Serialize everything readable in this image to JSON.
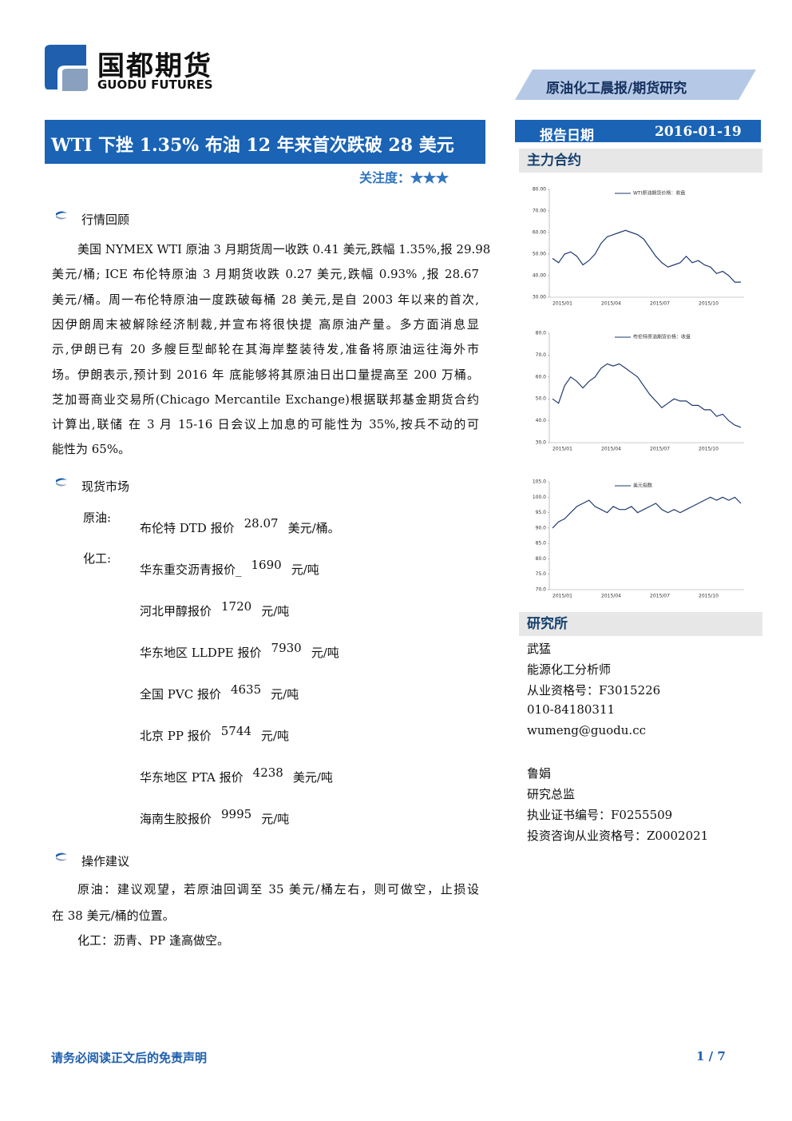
{
  "header": {
    "logo_cn": "国都期货",
    "logo_en": "GUODU FUTURES",
    "banner": "原油化工晨报/期货研究"
  },
  "title": "WTI 下挫 1.35% 布油 12 年来首次跌破 28 美元",
  "attention": {
    "label": "关注度：",
    "stars": "★★★"
  },
  "report_date": {
    "label": "报告日期",
    "value": "2016-01-19"
  },
  "sections": {
    "review": {
      "heading": "行情回顾",
      "lines": [
        "美国 NYMEX WTI 原油 3 月期货周一收跌 0.41 美元,跌幅 1.35%,报 29.98",
        "美元/桶; ICE 布伦特原油 3 月期货收跌 0.27 美元,跌幅 0.93% ,报 28.67",
        "美元/桶。周一布伦特原油一度跌破每桶 28 美元,是自 2003 年以来的首次,",
        "因伊朗周末被解除经济制裁,并宣布将很快提 高原油产量。多方面消息显",
        "示,伊朗已有 20 多艘巨型邮轮在其海岸整装待发,准备将原油运往海外市",
        "场。伊朗表示,预计到 2016 年 底能够将其原油日出口量提高至 200 万桶。",
        "芝加哥商业交易所(Chicago Mercantile Exchange)根据联邦基金期货合约",
        "计算出,联储 在 3 月 15-16 日会议上加息的可能性为 35%,按兵不动的可",
        "能性为 65%。"
      ]
    },
    "spot": {
      "heading": "现货市场",
      "crude": {
        "label": "原油:",
        "items": [
          {
            "name": "布伦特 DTD 报价",
            "price": 28.07,
            "unit": "美元/桶。"
          }
        ]
      },
      "chemical": {
        "label": "化工:",
        "items": [
          {
            "name": "华东重交沥青报价_",
            "price": 1690,
            "unit": "元/吨"
          },
          {
            "name": "河北甲醇报价",
            "price": 1720,
            "unit": "元/吨"
          },
          {
            "name": "华东地区 LLDPE 报价",
            "price": 7930,
            "unit": "元/吨"
          },
          {
            "name": "全国 PVC 报价",
            "price": 4635,
            "unit": "元/吨"
          },
          {
            "name": "北京 PP 报价",
            "price": 5744,
            "unit": "元/吨"
          },
          {
            "name": "华东地区 PTA 报价",
            "price": 4238,
            "unit": "美元/吨"
          },
          {
            "name": "海南生胶报价",
            "price": 9995,
            "unit": "元/吨"
          }
        ]
      }
    },
    "advice": {
      "heading": "操作建议",
      "lines": [
        "原油：建议观望，若原油回调至 35 美元/桶左右，则可做空，止损设",
        "在 38 美元/桶的位置。",
        "化工：沥青、PP 逢高做空。"
      ]
    }
  },
  "sidebar": {
    "contracts_heading": "主力合约",
    "research_heading": "研究所",
    "analysts": [
      [
        "武猛",
        "能源化工分析师",
        "从业资格号：F3015226",
        "010-84180311",
        "wumeng@guodu.cc"
      ],
      [
        "鲁娟",
        "研究总监",
        "执业证书编号：F0255509",
        "投资咨询从业资格号：Z0002021"
      ]
    ]
  },
  "footer": {
    "disclaimer": "请务必阅读正文后的免责声明",
    "page": "1 / 7"
  },
  "chart_data": [
    {
      "type": "line",
      "ylim": [
        30,
        80
      ],
      "yticks": [
        {
          "value": 30,
          "label": "30.00"
        },
        {
          "value": 40,
          "label": "40.00"
        },
        {
          "value": 50,
          "label": "50.00"
        },
        {
          "value": 60,
          "label": "60.00"
        },
        {
          "value": 70,
          "label": "70.00"
        },
        {
          "value": 80,
          "label": "80.00"
        }
      ],
      "x_labels": [
        "2015/01",
        "2015/04",
        "2015/07",
        "2015/10"
      ],
      "series": [
        {
          "name": "WTI原油期货价格：收盘",
          "color": "#1f3a6e",
          "values": [
            48,
            46,
            50,
            51,
            49,
            45,
            47,
            50,
            55,
            58,
            59,
            60,
            61,
            60,
            59,
            57,
            53,
            49,
            46,
            44,
            45,
            46,
            49,
            46,
            47,
            45,
            44,
            41,
            42,
            40,
            37,
            37
          ]
        }
      ]
    },
    {
      "type": "line",
      "ylim": [
        30,
        80
      ],
      "yticks": [
        {
          "value": 30,
          "label": "30.0"
        },
        {
          "value": 40,
          "label": "40.0"
        },
        {
          "value": 50,
          "label": "50.0"
        },
        {
          "value": 60,
          "label": "60.0"
        },
        {
          "value": 70,
          "label": "70.0"
        },
        {
          "value": 80,
          "label": "80.0"
        }
      ],
      "x_labels": [
        "2015/01",
        "2015/04",
        "2015/07",
        "2015/10"
      ],
      "series": [
        {
          "name": "布伦特原油期货价格：收盘",
          "color": "#1f3a6e",
          "values": [
            50,
            48,
            56,
            60,
            58,
            55,
            58,
            60,
            64,
            66,
            65,
            66,
            64,
            62,
            60,
            56,
            52,
            49,
            46,
            48,
            50,
            49,
            49,
            47,
            47,
            45,
            45,
            42,
            43,
            40,
            38,
            37
          ]
        }
      ]
    },
    {
      "type": "line",
      "ylim": [
        70,
        105
      ],
      "yticks": [
        {
          "value": 70,
          "label": "70.0"
        },
        {
          "value": 75,
          "label": "75.0"
        },
        {
          "value": 80,
          "label": "80.0"
        },
        {
          "value": 85,
          "label": "85.0"
        },
        {
          "value": 90,
          "label": "90.0"
        },
        {
          "value": 95,
          "label": "95.0"
        },
        {
          "value": 100,
          "label": "100.0"
        },
        {
          "value": 105,
          "label": "105.0"
        }
      ],
      "x_labels": [
        "2015/01",
        "2015/04",
        "2015/07",
        "2015/10"
      ],
      "series": [
        {
          "name": "美元指数",
          "color": "#1f3a6e",
          "values": [
            90,
            92,
            93,
            95,
            97,
            98,
            99,
            97,
            96,
            95,
            97,
            96,
            96,
            97,
            95,
            96,
            97,
            98,
            96,
            95,
            96,
            95,
            96,
            97,
            98,
            99,
            100,
            99,
            100,
            99,
            100,
            98
          ]
        }
      ]
    }
  ]
}
